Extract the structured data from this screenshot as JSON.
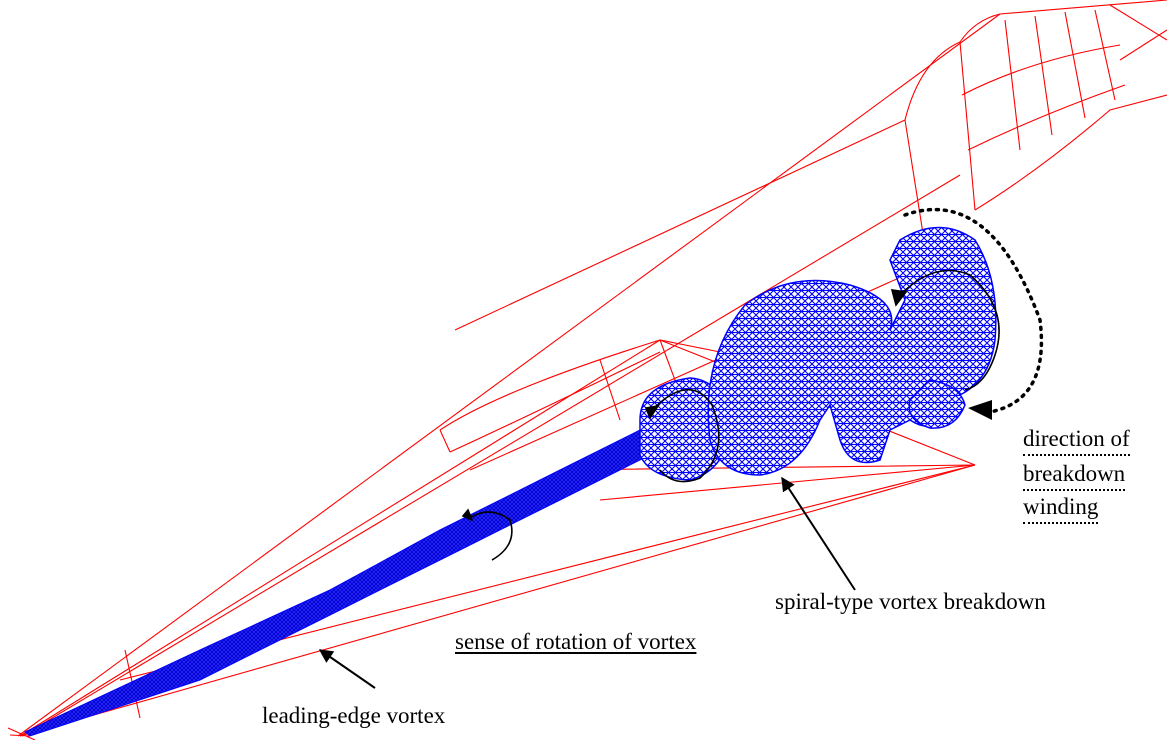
{
  "labels": {
    "direction_line1": "direction of",
    "direction_line2": "breakdown",
    "direction_line3": "winding",
    "spiral_breakdown": "spiral-type vortex breakdown",
    "sense_of_rotation": "sense of rotation of vortex",
    "leading_edge_vortex": "leading-edge vortex"
  },
  "colors": {
    "outline": "#ff0000",
    "vortex": "#0000ff",
    "annotation": "#000000",
    "background": "#ffffff"
  }
}
